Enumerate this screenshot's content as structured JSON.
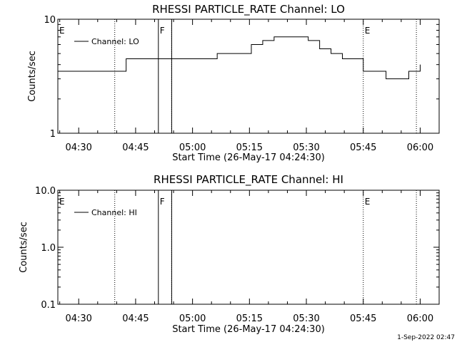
{
  "footer_date": "1-Sep-2022 02:47",
  "chart_data": [
    {
      "type": "line",
      "title": "RHESSI PARTICLE_RATE Channel: LO",
      "xlabel": "Start Time (26-May-17 04:24:30)",
      "ylabel": "Counts/sec",
      "yscale": "log",
      "xlim": [
        "04:24:30",
        "06:05:00"
      ],
      "ylim": [
        1,
        10
      ],
      "xticks": [
        "04:30",
        "04:45",
        "05:00",
        "05:15",
        "05:30",
        "05:45",
        "06:00"
      ],
      "yticks": [
        "1",
        "10"
      ],
      "legend": "Channel: LO",
      "legend_position": "top-left",
      "markers": [
        {
          "label": "E",
          "time": "04:24:30"
        },
        {
          "label": "F",
          "time": "04:51:00"
        },
        {
          "label": "E",
          "time": "05:45:00"
        }
      ],
      "dotted_lines": [
        "04:39:30",
        "04:54:30",
        "05:45:00",
        "05:59:00"
      ],
      "solid_lines": [
        "04:51:00",
        "04:54:30"
      ],
      "series": [
        {
          "t": [
            "04:24:30",
            "04:27:30",
            "04:30:30",
            "04:33:30",
            "04:36:30",
            "04:39:30",
            "04:42:30",
            "04:45:30",
            "04:48:30",
            "04:51:00",
            "04:54:30",
            "04:57:30",
            "05:00:30",
            "05:03:30",
            "05:06:30",
            "05:09:30",
            "05:12:30",
            "05:15:30",
            "05:18:30",
            "05:21:30",
            "05:24:30",
            "05:27:30",
            "05:30:30",
            "05:33:30",
            "05:36:30",
            "05:39:30",
            "05:42:30",
            "05:45:00",
            "05:48:00",
            "05:51:00",
            "05:54:00",
            "05:57:00",
            "06:00:00"
          ],
          "values": [
            3.5,
            3.5,
            3.5,
            3.5,
            3.5,
            3.5,
            4.5,
            4.5,
            4.5,
            4.5,
            4.5,
            4.5,
            4.5,
            4.5,
            5,
            5,
            5,
            6,
            6.5,
            7,
            7,
            7,
            6.5,
            5.5,
            5,
            4.5,
            4.5,
            3.5,
            3.5,
            3,
            3,
            3.5,
            4
          ]
        }
      ]
    },
    {
      "type": "line",
      "title": "RHESSI PARTICLE_RATE Channel: HI",
      "xlabel": "Start Time (26-May-17 04:24:30)",
      "ylabel": "Counts/sec",
      "yscale": "log",
      "xlim": [
        "04:24:30",
        "06:05:00"
      ],
      "ylim": [
        0.1,
        10
      ],
      "xticks": [
        "04:30",
        "04:45",
        "05:00",
        "05:15",
        "05:30",
        "05:45",
        "06:00"
      ],
      "yticks": [
        "0.1",
        "1.0",
        "10.0"
      ],
      "legend": "Channel: HI",
      "legend_position": "top-left",
      "markers": [
        {
          "label": "E",
          "time": "04:24:30"
        },
        {
          "label": "F",
          "time": "04:51:00"
        },
        {
          "label": "E",
          "time": "05:45:00"
        }
      ],
      "dotted_lines": [
        "04:39:30",
        "04:54:30",
        "05:45:00",
        "05:59:00"
      ],
      "solid_lines": [
        "04:51:00",
        "04:54:30"
      ],
      "series": []
    }
  ]
}
